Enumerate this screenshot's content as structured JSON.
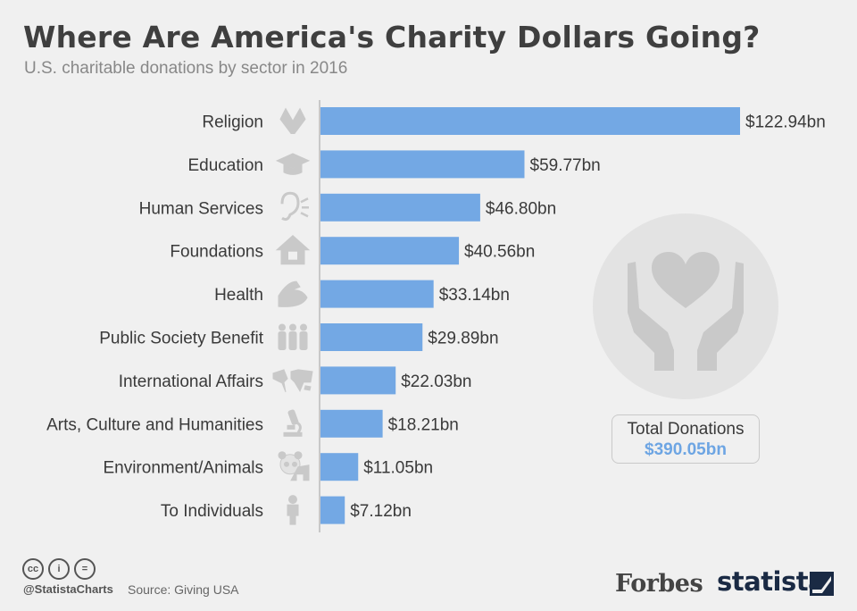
{
  "title": "Where Are America's Charity Dollars Going?",
  "subtitle": "U.S. charitable donations by sector in 2016",
  "chart_data": {
    "type": "bar",
    "orientation": "horizontal",
    "title": "Where Are America's Charity Dollars Going?",
    "subtitle": "U.S. charitable donations by sector in 2016",
    "xlabel": "",
    "ylabel": "",
    "unit": "billion USD",
    "categories": [
      "Religion",
      "Education",
      "Human Services",
      "Foundations",
      "Health",
      "Public Society Benefit",
      "International Affairs",
      "Arts, Culture and Humanities",
      "Environment/Animals",
      "To Individuals"
    ],
    "values": [
      122.94,
      59.77,
      46.8,
      40.56,
      33.14,
      29.89,
      22.03,
      18.21,
      11.05,
      7.12
    ],
    "value_labels": [
      "$122.94bn",
      "$59.77bn",
      "$46.80bn",
      "$40.56bn",
      "$33.14bn",
      "$29.89bn",
      "$22.03bn",
      "$18.21bn",
      "$11.05bn",
      "$7.12bn"
    ],
    "icons": [
      "praying-hands-icon",
      "graduation-cap-icon",
      "ear-icon",
      "house-icon",
      "flexed-arm-icon",
      "people-group-icon",
      "world-map-icon",
      "microscope-icon",
      "panda-icon",
      "person-icon"
    ],
    "xlim": [
      0,
      122.94
    ],
    "bar_color": "#73a8e4"
  },
  "total": {
    "label": "Total Donations",
    "value": "$390.05bn"
  },
  "footer": {
    "handle": "@StatistaCharts",
    "source": "Source: Giving USA",
    "cc_icons": [
      "cc",
      "i",
      "="
    ]
  },
  "brands": {
    "forbes": "Forbes",
    "statista": "statista"
  }
}
